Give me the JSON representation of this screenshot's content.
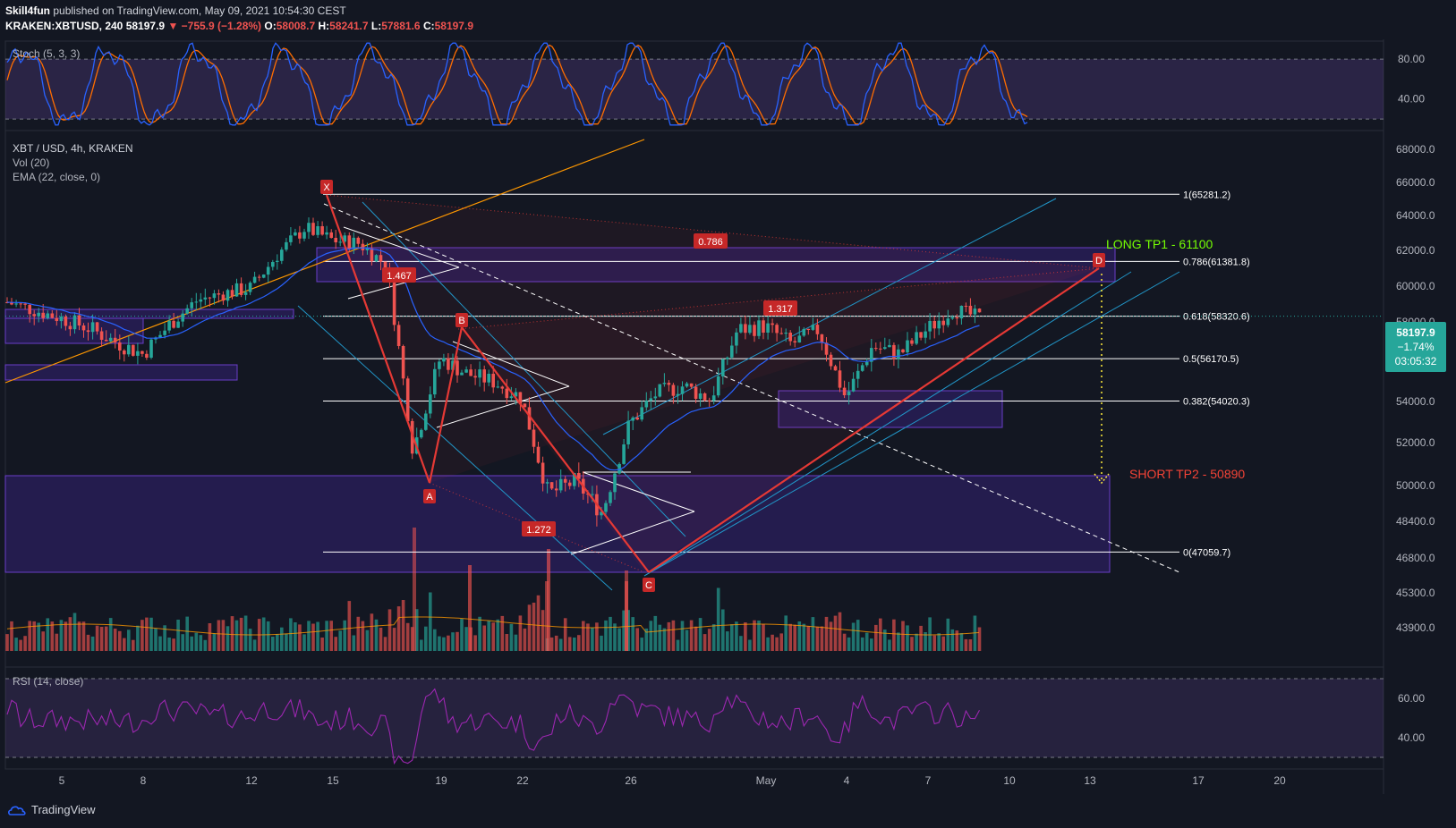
{
  "header": {
    "author": "Skill4fun",
    "published_text": "published on TradingView.com, May 09, 2021 10:54:30 CEST",
    "symbol": "KRAKEN:XBTUSD, 240",
    "last": "58197.9",
    "change": "▼ −755.9 (−1.28%)",
    "o_label": "O:",
    "o_val": "58008.7",
    "h_label": "H:",
    "h_val": "58241.7",
    "l_label": "L:",
    "l_val": "57881.6",
    "c_label": "C:",
    "c_val": "58197.9"
  },
  "legend": {
    "stoch": "Stoch (5, 3, 3)",
    "main_title": "XBT / USD, 4h, KRAKEN",
    "vol": "Vol (20)",
    "ema": "EMA (22, close, 0)",
    "rsi": "RSI (14, close)"
  },
  "price_badge": {
    "price": "58197.9",
    "change": "−1.74%",
    "countdown": "03:05:32"
  },
  "annotations": {
    "long_tp": "LONG TP1 - 61100",
    "short_tp": "SHORT TP2 - 50890",
    "pattern_points": [
      "X",
      "A",
      "B",
      "C",
      "D"
    ],
    "ratio_labels": [
      "0.786",
      "1.317",
      "1.272",
      "1.467"
    ]
  },
  "footer": {
    "brand": "TradingView"
  },
  "colors": {
    "background": "#131722",
    "up": "#26a69a",
    "down": "#ef5350",
    "fib": "#ffffff",
    "channel": "#2196c8",
    "pattern": "#e53935",
    "zone": "#311b92",
    "stoch_k": "#2962ff",
    "stoch_d": "#ff6d00",
    "rsi": "#9c27b0",
    "long_text": "#76ff03",
    "short_text": "#f44336",
    "trendline": "#ff9800"
  },
  "chart_data": {
    "type": "candlestick",
    "main": {
      "title": "XBT / USD, 4h, KRAKEN",
      "ylim": [
        42800,
        68500
      ],
      "y_ticks": [
        "68000.0",
        "66000.0",
        "64000.0",
        "62000.0",
        "60000.0",
        "58000.0",
        "56000.0",
        "54000.0",
        "52000.0",
        "50000.0",
        "48400.0",
        "46800.0",
        "45300.0",
        "43900.0"
      ],
      "x_ticks": [
        "5",
        "8",
        "12",
        "15",
        "19",
        "22",
        "26",
        "May",
        "4",
        "7",
        "10",
        "13",
        "17",
        "20"
      ],
      "fib_levels": [
        {
          "ratio": "1",
          "price": 65281.2,
          "label": "1(65281.2)"
        },
        {
          "ratio": "0.786",
          "price": 61381.8,
          "label": "0.786(61381.8)"
        },
        {
          "ratio": "0.618",
          "price": 58320.6,
          "label": "0.618(58320.6)"
        },
        {
          "ratio": "0.5",
          "price": 56170.5,
          "label": "0.5(56170.5)"
        },
        {
          "ratio": "0.382",
          "price": 54020.3,
          "label": "0.382(54020.3)"
        },
        {
          "ratio": "0",
          "price": 47059.7,
          "label": "0(47059.7)"
        }
      ],
      "pattern": [
        {
          "label": "X",
          "date": "Apr 14",
          "price": 65281
        },
        {
          "label": "A",
          "date": "Apr 18",
          "price": 50900
        },
        {
          "label": "B",
          "date": "Apr 19",
          "price": 57800
        },
        {
          "label": "C",
          "date": "Apr 25",
          "price": 47060
        },
        {
          "label": "D",
          "date": "May 12",
          "price": 61100
        }
      ],
      "close_path": [
        {
          "date": "Apr 3",
          "close": 59100
        },
        {
          "date": "Apr 5",
          "close": 58200
        },
        {
          "date": "Apr 6",
          "close": 57700
        },
        {
          "date": "Apr 7",
          "close": 57000
        },
        {
          "date": "Apr 8",
          "close": 56400
        },
        {
          "date": "Apr 9",
          "close": 57900
        },
        {
          "date": "Apr 10",
          "close": 59200
        },
        {
          "date": "Apr 11",
          "close": 59600
        },
        {
          "date": "Apr 12",
          "close": 59900
        },
        {
          "date": "Apr 13",
          "close": 61800
        },
        {
          "date": "Apr 14",
          "close": 63300
        },
        {
          "date": "Apr 15",
          "close": 62600
        },
        {
          "date": "Apr 16",
          "close": 62400
        },
        {
          "date": "Apr 17",
          "close": 61200
        },
        {
          "date": "Apr 18",
          "close": 51600
        },
        {
          "date": "Apr 19",
          "close": 56200
        },
        {
          "date": "Apr 20",
          "close": 55400
        },
        {
          "date": "Apr 21",
          "close": 55000
        },
        {
          "date": "Apr 22",
          "close": 54200
        },
        {
          "date": "Apr 23",
          "close": 49600
        },
        {
          "date": "Apr 24",
          "close": 50200
        },
        {
          "date": "Apr 25",
          "close": 48800
        },
        {
          "date": "Apr 26",
          "close": 52900
        },
        {
          "date": "Apr 27",
          "close": 54400
        },
        {
          "date": "Apr 28",
          "close": 54800
        },
        {
          "date": "Apr 29",
          "close": 54100
        },
        {
          "date": "Apr 30",
          "close": 57600
        },
        {
          "date": "May 1",
          "close": 57800
        },
        {
          "date": "May 2",
          "close": 56900
        },
        {
          "date": "May 3",
          "close": 57600
        },
        {
          "date": "May 4",
          "close": 54200
        },
        {
          "date": "May 5",
          "close": 56800
        },
        {
          "date": "May 6",
          "close": 56400
        },
        {
          "date": "May 7",
          "close": 57600
        },
        {
          "date": "May 8",
          "close": 58700
        },
        {
          "date": "May 9",
          "close": 58197.9
        }
      ]
    },
    "stochastic": {
      "name": "Stoch (5, 3, 3)",
      "ylim": [
        12,
        98
      ],
      "y_ticks": [
        "80.00",
        "40.00"
      ],
      "bands": [
        80,
        20
      ]
    },
    "rsi": {
      "name": "RSI (14, close)",
      "ylim": [
        25,
        75
      ],
      "y_ticks": [
        "60.00",
        "40.00"
      ],
      "bands": [
        70,
        30
      ]
    }
  }
}
